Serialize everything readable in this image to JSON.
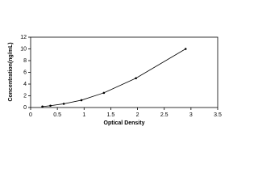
{
  "chart_data": {
    "type": "scatter",
    "x_label": "Optical Density",
    "y_label": "Concentration(ng/mL)",
    "series": [
      {
        "x": [
          0.22,
          0.37,
          0.62,
          0.95,
          1.37,
          1.97,
          2.9
        ],
        "values": [
          0.16,
          0.31,
          0.63,
          1.25,
          2.5,
          5,
          10
        ],
        "color": "#000000"
      }
    ],
    "xlim": [
      0,
      3.5
    ],
    "xticks": [
      0,
      0.5,
      1,
      1.5,
      2,
      2.5,
      3,
      3.5
    ],
    "ylim": [
      0,
      12
    ],
    "yticks": [
      0,
      2,
      4,
      6,
      8,
      10,
      12
    ],
    "line": true
  }
}
